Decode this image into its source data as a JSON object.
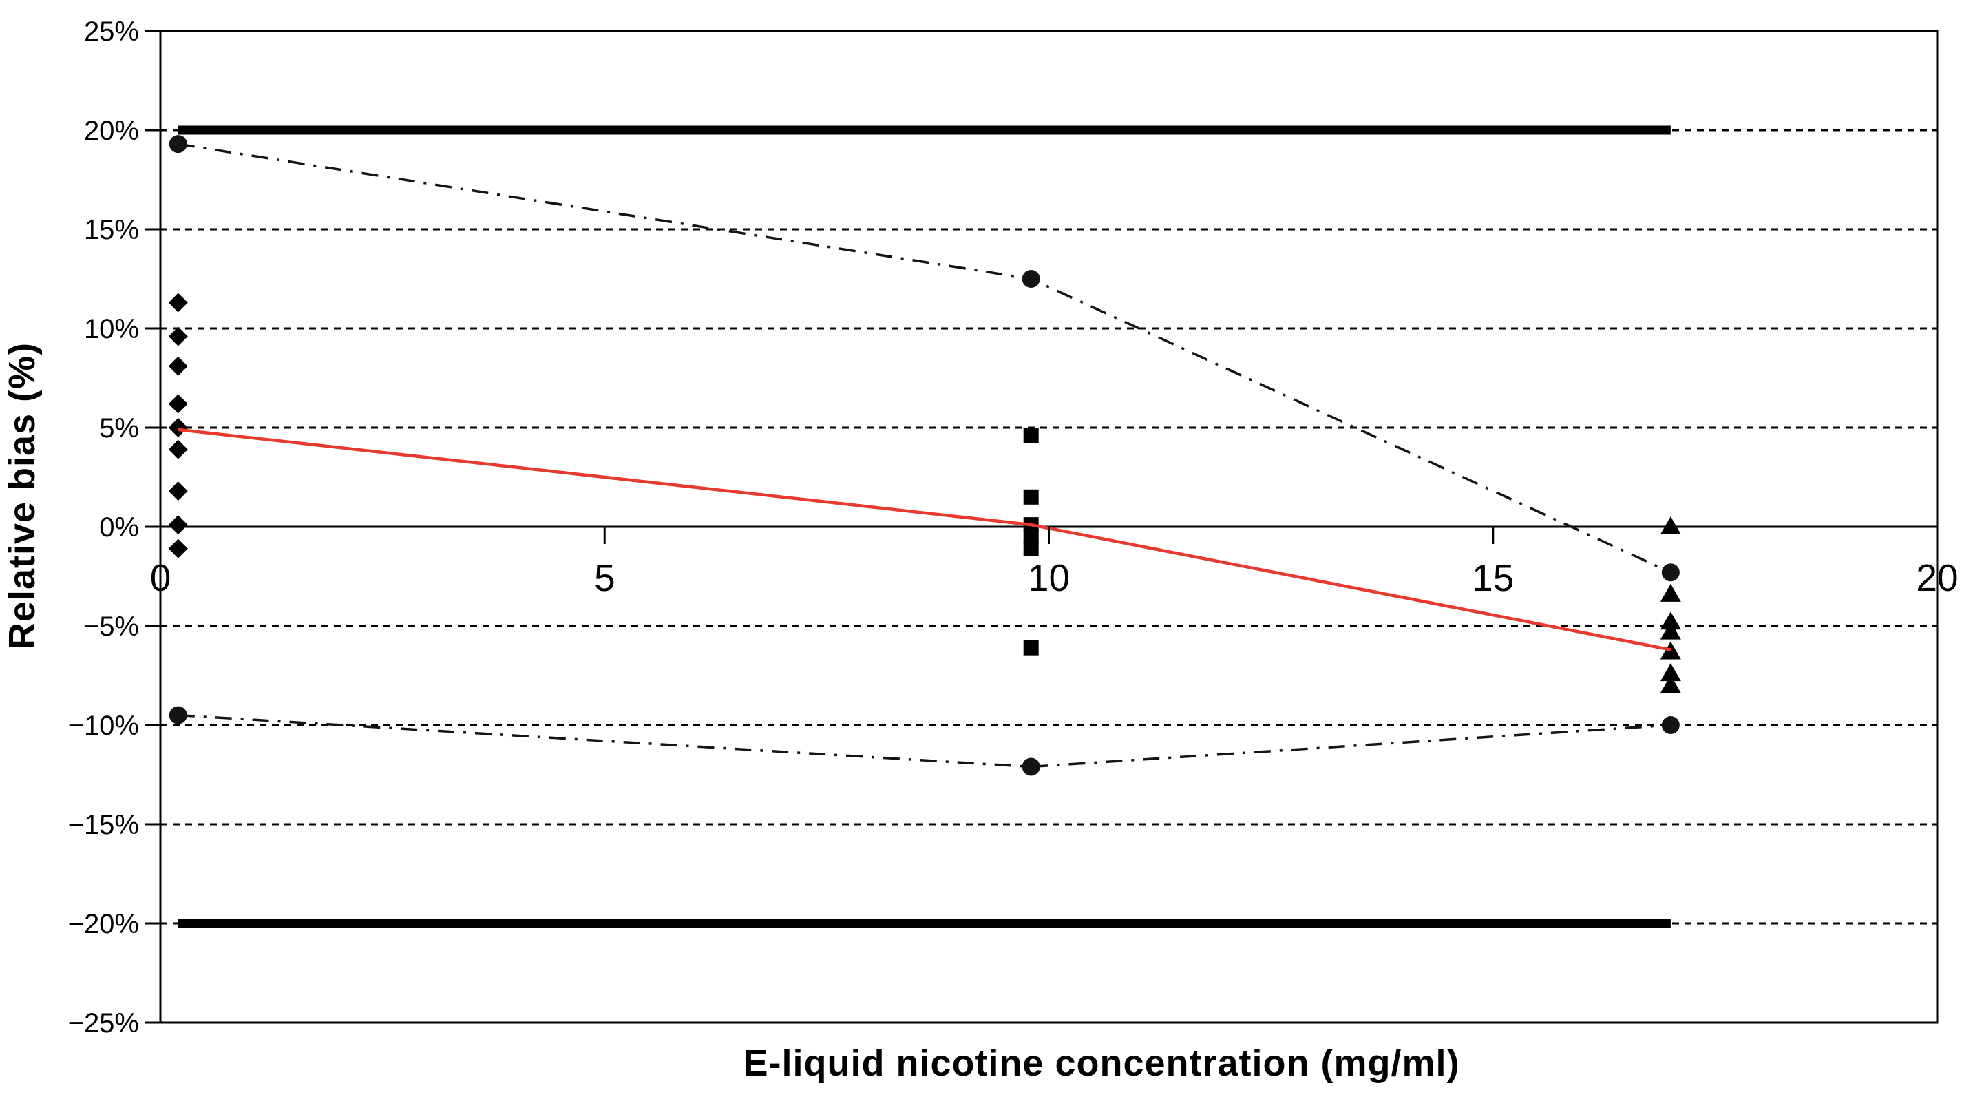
{
  "page": {
    "background": "#ffffff"
  },
  "chart_data": {
    "type": "scatter",
    "title": "",
    "xlabel": "E-liquid nicotine concentration (mg/ml)",
    "ylabel": "Relative bias (%)",
    "xlim": [
      0,
      20
    ],
    "ylim": [
      -25,
      25
    ],
    "legend": "none",
    "grid": {
      "horizontal": true,
      "style": "dashed",
      "zero_line": "solid",
      "frame": true
    },
    "x_ticks": [
      {
        "value": 0,
        "label": "0"
      },
      {
        "value": 5,
        "label": "5"
      },
      {
        "value": 10,
        "label": "10"
      },
      {
        "value": 15,
        "label": "15"
      },
      {
        "value": 20,
        "label": "20"
      }
    ],
    "y_ticks": [
      {
        "value": 25,
        "label": "25%"
      },
      {
        "value": 20,
        "label": "20%"
      },
      {
        "value": 15,
        "label": "15%"
      },
      {
        "value": 10,
        "label": "10%"
      },
      {
        "value": 5,
        "label": "5%"
      },
      {
        "value": 0,
        "label": "0%"
      },
      {
        "value": -5,
        "label": "−5%"
      },
      {
        "value": -10,
        "label": "−10%"
      },
      {
        "value": -15,
        "label": "−15%"
      },
      {
        "value": -20,
        "label": "−20%"
      },
      {
        "value": -25,
        "label": "−25%"
      }
    ],
    "colors": {
      "black": "#000000",
      "dash_dot_line": "#141414",
      "red_line": "#e8392e"
    },
    "acceptance_limits": {
      "upper_pct": 20,
      "lower_pct": -20,
      "x_start": 0.2,
      "x_end": 17,
      "stroke_width": 13
    },
    "series": [
      {
        "name": "diamond-samples-low-concentration",
        "marker": "diamond",
        "line": "none",
        "color": "#000000",
        "points": [
          [
            0.2,
            11.3
          ],
          [
            0.2,
            9.6
          ],
          [
            0.2,
            8.1
          ],
          [
            0.2,
            6.2
          ],
          [
            0.2,
            5.0
          ],
          [
            0.2,
            3.9
          ],
          [
            0.2,
            1.8
          ],
          [
            0.2,
            0.1
          ],
          [
            0.2,
            -1.1
          ]
        ]
      },
      {
        "name": "square-samples-mid-concentration",
        "marker": "square",
        "line": "none",
        "color": "#000000",
        "points": [
          [
            9.8,
            4.6
          ],
          [
            9.8,
            1.5
          ],
          [
            9.8,
            0.1
          ],
          [
            9.8,
            -0.5
          ],
          [
            9.8,
            -1.1
          ],
          [
            9.8,
            -6.1
          ]
        ]
      },
      {
        "name": "triangle-samples-high-concentration",
        "marker": "triangle",
        "line": "none",
        "color": "#000000",
        "points": [
          [
            17,
            0.0
          ],
          [
            17,
            -3.4
          ],
          [
            17,
            -4.8
          ],
          [
            17,
            -5.3
          ],
          [
            17,
            -6.3
          ],
          [
            17,
            -7.4
          ],
          [
            17,
            -8.0
          ]
        ]
      },
      {
        "name": "upper-confidence-limit",
        "marker": "circle",
        "line": "dash-dot",
        "color": "#141414",
        "points": [
          [
            0.2,
            19.3
          ],
          [
            9.8,
            12.5
          ],
          [
            17,
            -2.3
          ]
        ]
      },
      {
        "name": "lower-confidence-limit",
        "marker": "circle",
        "line": "dash-dot",
        "color": "#141414",
        "points": [
          [
            0.2,
            -9.5
          ],
          [
            9.8,
            -12.1
          ],
          [
            17,
            -10.0
          ]
        ]
      },
      {
        "name": "mean-relative-bias",
        "marker": "none",
        "line": "solid",
        "color": "#e8392e",
        "points": [
          [
            0.2,
            4.9
          ],
          [
            9.8,
            0.1
          ],
          [
            17,
            -6.2
          ]
        ]
      }
    ]
  }
}
